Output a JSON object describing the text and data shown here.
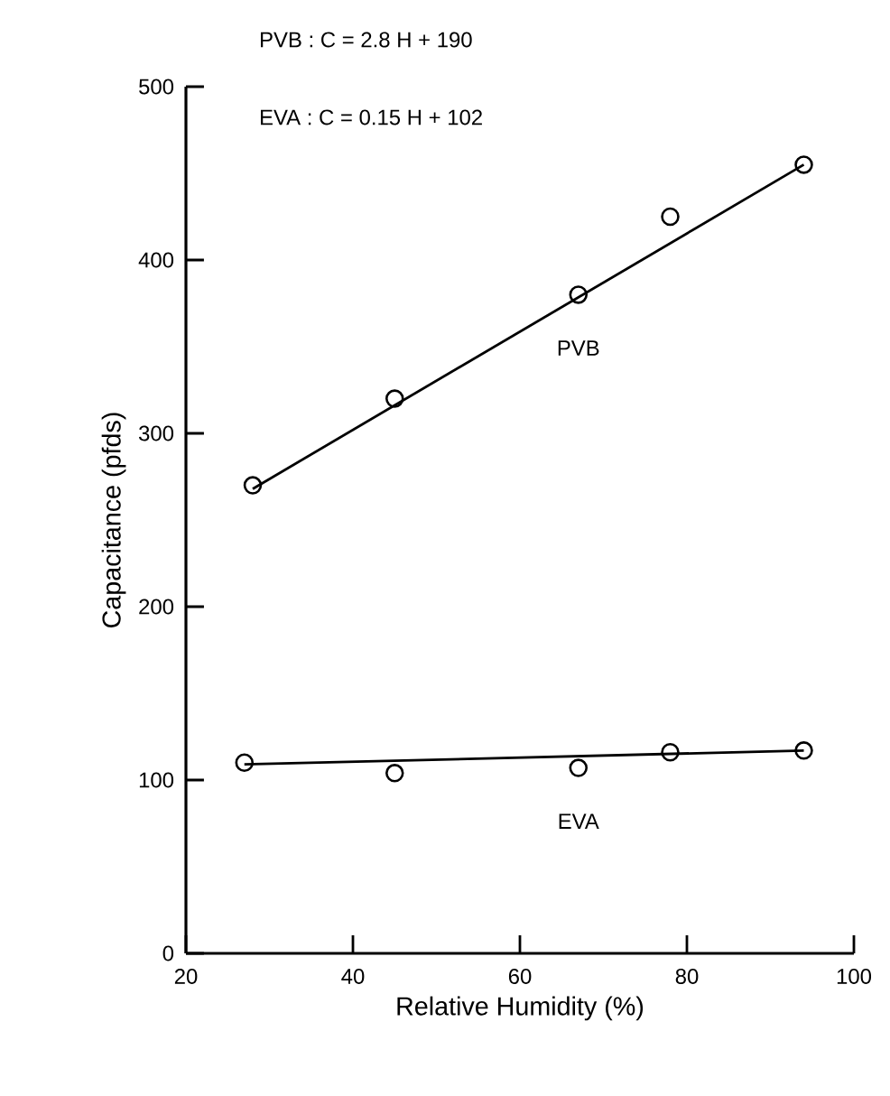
{
  "chart_data": {
    "type": "scatter",
    "xlabel": "Relative Humidity (%)",
    "ylabel": "Capacitance (pfds)",
    "annotations": [
      "PVB : C = 2.8 H + 190",
      "EVA : C = 0.15 H + 102"
    ],
    "xlim": [
      20,
      100
    ],
    "ylim": [
      0,
      500
    ],
    "xticks": [
      20,
      40,
      60,
      80,
      100
    ],
    "yticks": [
      0,
      100,
      200,
      300,
      400,
      500
    ],
    "grid": false,
    "legend": false,
    "marker": "circle",
    "series": [
      {
        "name": "PVB",
        "color": "#000000",
        "x": [
          28,
          45,
          67,
          78,
          94
        ],
        "values": [
          270,
          320,
          380,
          425,
          455
        ]
      },
      {
        "type": "line",
        "color": "#000000",
        "marker": "none",
        "x": [
          28,
          94
        ],
        "values": [
          268,
          455
        ]
      },
      {
        "name": "EVA",
        "color": "#000000",
        "x": [
          27,
          45,
          67,
          78,
          94
        ],
        "values": [
          110,
          104,
          107,
          116,
          117
        ]
      },
      {
        "type": "line",
        "color": "#000000",
        "marker": "none",
        "x": [
          27,
          94
        ],
        "values": [
          109,
          117
        ]
      }
    ]
  }
}
